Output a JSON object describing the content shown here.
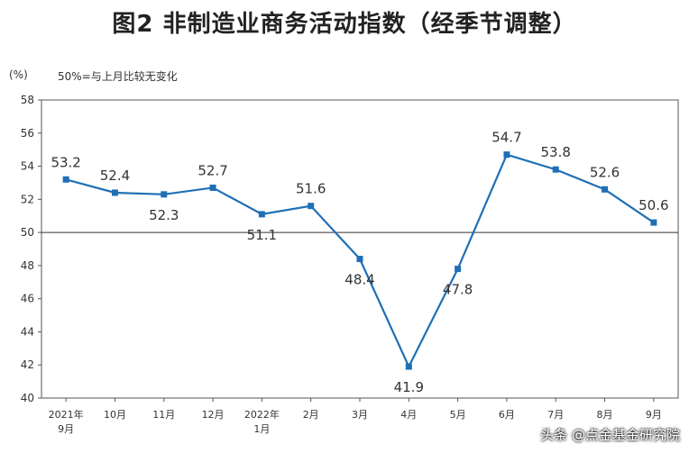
{
  "title": "图2 非制造业商务活动指数（经季节调整）",
  "unit_label": "(%)",
  "reference_note": "50%=与上月比较无变化",
  "watermark": "头条 @点金基金研究院",
  "chart_data": {
    "type": "line",
    "title": "图2 非制造业商务活动指数（经季节调整）",
    "categories": [
      "2021年\n9月",
      "10月",
      "11月",
      "12月",
      "2022年\n1月",
      "2月",
      "3月",
      "4月",
      "5月",
      "6月",
      "7月",
      "8月",
      "9月"
    ],
    "series": [
      {
        "values": [
          53.2,
          52.4,
          52.3,
          52.7,
          51.1,
          51.6,
          48.4,
          41.9,
          47.8,
          54.7,
          53.8,
          52.6,
          50.6
        ]
      }
    ],
    "data_labels": [
      "53.2",
      "52.4",
      "52.3",
      "52.7",
      "51.1",
      "51.6",
      "48.4",
      "41.9",
      "47.8",
      "54.7",
      "53.8",
      "52.6",
      "50.6"
    ],
    "yticks": [
      40,
      42,
      44,
      46,
      48,
      50,
      52,
      54,
      56,
      58
    ],
    "ylim": [
      40,
      58
    ],
    "reference_line": 50,
    "color": "#1f6fb5",
    "grid": false,
    "legend": "none"
  }
}
